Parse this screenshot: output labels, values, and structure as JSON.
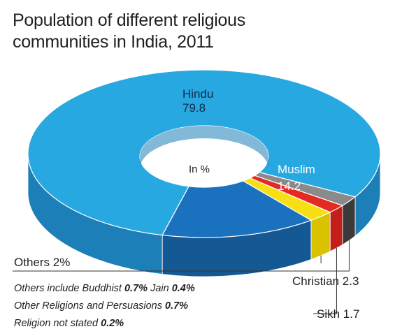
{
  "chart_data": {
    "type": "pie",
    "style": "3d-donut",
    "title_lines": [
      "Population of different religious",
      "communities in India, 2011"
    ],
    "center_label": "In %",
    "slices": [
      {
        "name": "Hindu",
        "value": 79.8,
        "color": "#27a8e0",
        "side_color": "#1d7fb8",
        "label_lines": [
          "Hindu",
          "79.8"
        ]
      },
      {
        "name": "Muslim",
        "value": 14.2,
        "color": "#1a72bf",
        "side_color": "#155994",
        "label_lines": [
          "Muslim",
          "14.2"
        ]
      },
      {
        "name": "Christian",
        "value": 2.3,
        "color": "#f6e013",
        "side_color": "#d9c200",
        "label": "Christian 2.3"
      },
      {
        "name": "Sikh",
        "value": 1.7,
        "color": "#e52a24",
        "side_color": "#c21e1a",
        "label": "Sikh 1.7"
      },
      {
        "name": "Others",
        "value": 2.0,
        "color": "#8a8a8a",
        "side_color": "#3a3a3a",
        "label": "Others 2%"
      }
    ],
    "others_breakdown": [
      {
        "prefix": "Others include Buddhist ",
        "parts": [
          {
            "bold": "0.7%",
            "text": " Jain "
          },
          {
            "bold": "0.4%",
            "text": ""
          }
        ]
      },
      {
        "prefix": "Other Religions and Persuasions ",
        "parts": [
          {
            "bold": "0.7%",
            "text": ""
          }
        ]
      },
      {
        "prefix": "Religion not stated ",
        "parts": [
          {
            "bold": "0.2%",
            "text": ""
          }
        ]
      }
    ]
  }
}
